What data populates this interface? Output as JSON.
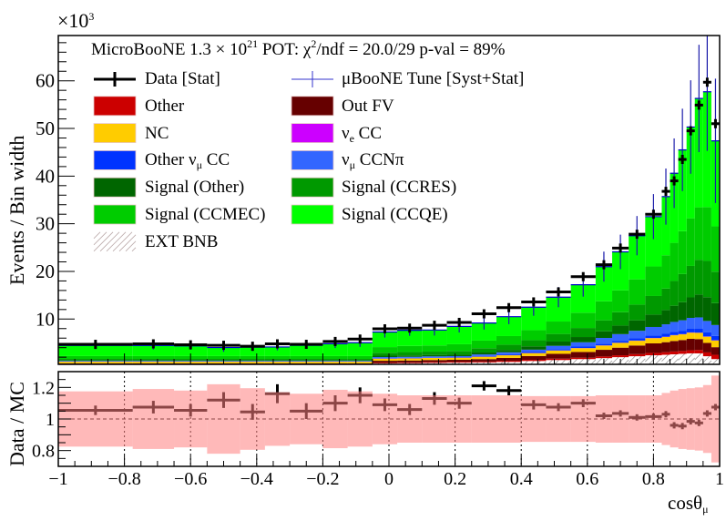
{
  "chart_data": {
    "type": "bar",
    "subtype": "stacked-histogram-with-ratio",
    "title_parts": {
      "a": "MicroBooNE 1.3 × 10",
      "sup1": "21",
      "b": " POT: χ",
      "sup2": "2",
      "c": "/ndf = 20.0/29 p-val = 89%"
    },
    "xlabel": {
      "main": "cosθ",
      "sub": "μ"
    },
    "ylabel": "Events / Bin width",
    "y_multiplier": {
      "main": "×10",
      "sup": "3"
    },
    "ratio_ylabel": "Data / MC",
    "xlim": [
      -1,
      1
    ],
    "ylim": [
      0.5,
      69.5
    ],
    "ratio_ylim": [
      0.7,
      1.3
    ],
    "x_tick_labels": [
      "−1",
      "−0.8",
      "−0.6",
      "−0.4",
      "−0.2",
      "0",
      "0.2",
      "0.4",
      "0.6",
      "0.8",
      "1"
    ],
    "x_tick_values": [
      -1,
      -0.8,
      -0.6,
      -0.4,
      -0.2,
      0,
      0.2,
      0.4,
      0.6,
      0.8,
      1
    ],
    "y_tick_labels": [
      "10",
      "20",
      "30",
      "40",
      "50",
      "60"
    ],
    "y_tick_values": [
      10,
      20,
      30,
      40,
      50,
      60
    ],
    "ratio_tick_labels": [
      "0.8",
      "1",
      "1.2"
    ],
    "ratio_tick_values": [
      0.8,
      1.0,
      1.2
    ],
    "bin_edges": [
      -1,
      -0.775,
      -0.65,
      -0.55,
      -0.45,
      -0.375,
      -0.3,
      -0.2,
      -0.125,
      -0.05,
      0.025,
      0.1,
      0.175,
      0.25,
      0.325,
      0.4,
      0.475,
      0.55,
      0.625,
      0.675,
      0.725,
      0.775,
      0.825,
      0.85,
      0.875,
      0.9,
      0.925,
      0.95,
      0.975,
      1.0
    ],
    "data": [
      4.7,
      4.8,
      4.6,
      4.5,
      4.3,
      4.8,
      4.7,
      5.3,
      5.8,
      7.95,
      8.1,
      8.7,
      9.3,
      11.1,
      12.4,
      13.6,
      15.7,
      18.9,
      21.4,
      24.9,
      27.8,
      32.0,
      36.8,
      39.0,
      43.5,
      49.5,
      54.9,
      59.7,
      51.0
    ],
    "mc_rel_unc": [
      0.175,
      0.19,
      0.18,
      0.22,
      0.195,
      0.17,
      0.16,
      0.185,
      0.175,
      0.16,
      0.15,
      0.15,
      0.15,
      0.15,
      0.15,
      0.145,
      0.145,
      0.145,
      0.15,
      0.15,
      0.15,
      0.15,
      0.165,
      0.18,
      0.19,
      0.195,
      0.2,
      0.215,
      0.275
    ],
    "ratio": [
      1.055,
      1.075,
      1.055,
      1.12,
      1.045,
      1.16,
      1.05,
      1.1,
      1.15,
      1.09,
      1.06,
      1.13,
      1.1,
      1.21,
      1.18,
      1.09,
      1.075,
      1.1,
      1.02,
      1.035,
      1.01,
      1.015,
      1.03,
      0.96,
      0.955,
      0.985,
      0.975,
      1.035,
      1.075
    ],
    "ratio_err": [
      0.03,
      0.04,
      0.04,
      0.05,
      0.05,
      0.06,
      0.05,
      0.05,
      0.05,
      0.04,
      0.035,
      0.04,
      0.035,
      0.03,
      0.03,
      0.03,
      0.025,
      0.025,
      0.02,
      0.02,
      0.02,
      0.02,
      0.02,
      0.02,
      0.02,
      0.02,
      0.02,
      0.02,
      0.02
    ],
    "series": [
      {
        "name": "EXT BNB",
        "color": "#ffffff",
        "hatched": true,
        "values": [
          0.3,
          0.3,
          0.3,
          0.3,
          0.3,
          0.3,
          0.3,
          0.3,
          0.3,
          0.7,
          0.75,
          0.8,
          0.85,
          0.9,
          1.0,
          1.2,
          1.4,
          1.6,
          1.8,
          2.0,
          2.2,
          2.4,
          2.5,
          2.6,
          2.7,
          2.8,
          2.8,
          2.2,
          1.6
        ]
      },
      {
        "name": "Other",
        "color": "#cc0000",
        "values": [
          0.1,
          0.1,
          0.1,
          0.1,
          0.1,
          0.1,
          0.1,
          0.1,
          0.1,
          0.15,
          0.15,
          0.2,
          0.2,
          0.2,
          0.25,
          0.25,
          0.3,
          0.3,
          0.35,
          0.4,
          0.45,
          0.5,
          0.55,
          0.6,
          0.6,
          0.65,
          0.7,
          0.8,
          0.9
        ]
      },
      {
        "name": "Out FV",
        "color": "#660000",
        "values": [
          0.3,
          0.3,
          0.3,
          0.3,
          0.3,
          0.3,
          0.3,
          0.3,
          0.3,
          0.4,
          0.4,
          0.4,
          0.4,
          0.5,
          0.6,
          0.8,
          1.0,
          1.2,
          1.4,
          1.6,
          1.8,
          2.0,
          2.1,
          2.2,
          2.3,
          2.4,
          2.3,
          2.0,
          1.6
        ]
      },
      {
        "name": "NC",
        "color": "#ffcc00",
        "values": [
          0.35,
          0.35,
          0.35,
          0.35,
          0.35,
          0.35,
          0.35,
          0.35,
          0.35,
          0.45,
          0.45,
          0.45,
          0.45,
          0.5,
          0.55,
          0.6,
          0.7,
          0.8,
          0.9,
          1.0,
          1.0,
          1.1,
          1.1,
          1.2,
          1.2,
          1.3,
          1.3,
          1.3,
          1.4
        ]
      },
      {
        "name": "νe CC",
        "color": "#cc00ff",
        "values": [
          0.01,
          0.01,
          0.01,
          0.01,
          0.01,
          0.01,
          0.01,
          0.01,
          0.01,
          0.02,
          0.02,
          0.02,
          0.02,
          0.03,
          0.03,
          0.03,
          0.03,
          0.03,
          0.04,
          0.04,
          0.04,
          0.04,
          0.05,
          0.05,
          0.05,
          0.05,
          0.05,
          0.05,
          0.05
        ]
      },
      {
        "name": "Other νμ CC",
        "color": "#0033ff",
        "values": [
          0.08,
          0.08,
          0.08,
          0.08,
          0.08,
          0.08,
          0.08,
          0.08,
          0.08,
          0.1,
          0.1,
          0.1,
          0.1,
          0.15,
          0.2,
          0.2,
          0.25,
          0.3,
          0.35,
          0.4,
          0.45,
          0.5,
          0.6,
          0.65,
          0.7,
          0.75,
          0.8,
          0.85,
          0.9
        ]
      },
      {
        "name": "νμ CCNπ",
        "color": "#3366ff",
        "values": [
          0.1,
          0.1,
          0.1,
          0.1,
          0.1,
          0.1,
          0.1,
          0.1,
          0.1,
          0.2,
          0.2,
          0.2,
          0.2,
          0.3,
          0.4,
          0.5,
          0.7,
          0.9,
          1.2,
          1.4,
          1.6,
          1.8,
          2.0,
          2.1,
          2.2,
          2.3,
          2.4,
          2.4,
          2.3
        ]
      },
      {
        "name": "Signal (Other)",
        "color": "#006600",
        "values": [
          0.1,
          0.1,
          0.1,
          0.1,
          0.1,
          0.1,
          0.1,
          0.1,
          0.1,
          0.3,
          0.3,
          0.3,
          0.3,
          0.4,
          0.5,
          0.7,
          0.9,
          1.1,
          1.4,
          1.8,
          2.2,
          2.6,
          3.0,
          3.4,
          3.8,
          4.3,
          4.8,
          5.0,
          4.6
        ]
      },
      {
        "name": "Signal (CCRES)",
        "color": "#009900",
        "values": [
          0.3,
          0.3,
          0.3,
          0.3,
          0.3,
          0.3,
          0.3,
          0.3,
          0.3,
          0.6,
          0.7,
          0.7,
          0.8,
          0.9,
          1.1,
          1.3,
          1.6,
          1.9,
          2.3,
          2.8,
          3.3,
          3.9,
          4.5,
          5.2,
          5.9,
          6.6,
          7.3,
          7.6,
          6.6
        ]
      },
      {
        "name": "Signal (CCMEC)",
        "color": "#00cc00",
        "values": [
          0.6,
          0.6,
          0.6,
          0.6,
          0.6,
          0.6,
          0.6,
          0.6,
          0.6,
          1.2,
          1.3,
          1.3,
          1.4,
          1.6,
          1.8,
          2.1,
          2.6,
          3.2,
          4.0,
          4.6,
          5.3,
          6.2,
          7.0,
          8.0,
          9.0,
          10.0,
          11.0,
          11.3,
          9.5
        ]
      },
      {
        "name": "Signal (CCQE)",
        "color": "#00ff00",
        "values": [
          2.21,
          2.23,
          2.12,
          1.78,
          1.87,
          1.9,
          2.24,
          2.58,
          2.8,
          3.17,
          3.27,
          3.23,
          3.73,
          3.69,
          4.07,
          4.82,
          5.12,
          5.87,
          7.26,
          8.06,
          9.16,
          10.46,
          12.3,
          14.6,
          17.05,
          19.15,
          22.85,
          24.2,
          17.95
        ]
      }
    ],
    "colors": {
      "data": "#000000",
      "mc_line": "#0000cc",
      "ratio_band": "#ff8080"
    },
    "legend": {
      "placement": "top-left",
      "left": [
        {
          "main": "Data [Stat]",
          "sub": "",
          "tail": "",
          "kind": "data",
          "color": "#000000"
        },
        {
          "main": "Other",
          "sub": "",
          "tail": "",
          "kind": "box",
          "color": "#cc0000"
        },
        {
          "main": "NC",
          "sub": "",
          "tail": "",
          "kind": "box",
          "color": "#ffcc00"
        },
        {
          "main": "Other ν",
          "sub": "μ",
          "tail": " CC",
          "kind": "box",
          "color": "#0033ff"
        },
        {
          "main": "Signal (Other)",
          "sub": "",
          "tail": "",
          "kind": "box",
          "color": "#006600"
        },
        {
          "main": "Signal (CCMEC)",
          "sub": "",
          "tail": "",
          "kind": "box",
          "color": "#00cc00"
        },
        {
          "main": "EXT BNB",
          "sub": "",
          "tail": "",
          "kind": "hatch",
          "color": "#bbaaaa"
        }
      ],
      "right": [
        {
          "main": "μBooNE Tune [Syst+Stat]",
          "sub": "",
          "tail": "",
          "kind": "mc",
          "color": "#3333cc"
        },
        {
          "main": "Out FV",
          "sub": "",
          "tail": "",
          "kind": "box",
          "color": "#660000"
        },
        {
          "main": "ν",
          "sub": "e",
          "tail": " CC",
          "kind": "box",
          "color": "#cc00ff"
        },
        {
          "main": "ν",
          "sub": "μ",
          "tail": " CCNπ",
          "kind": "box",
          "color": "#3366ff"
        },
        {
          "main": "Signal (CCRES)",
          "sub": "",
          "tail": "",
          "kind": "box",
          "color": "#009900"
        },
        {
          "main": "Signal (CCQE)",
          "sub": "",
          "tail": "",
          "kind": "box",
          "color": "#00ff00"
        }
      ]
    }
  }
}
